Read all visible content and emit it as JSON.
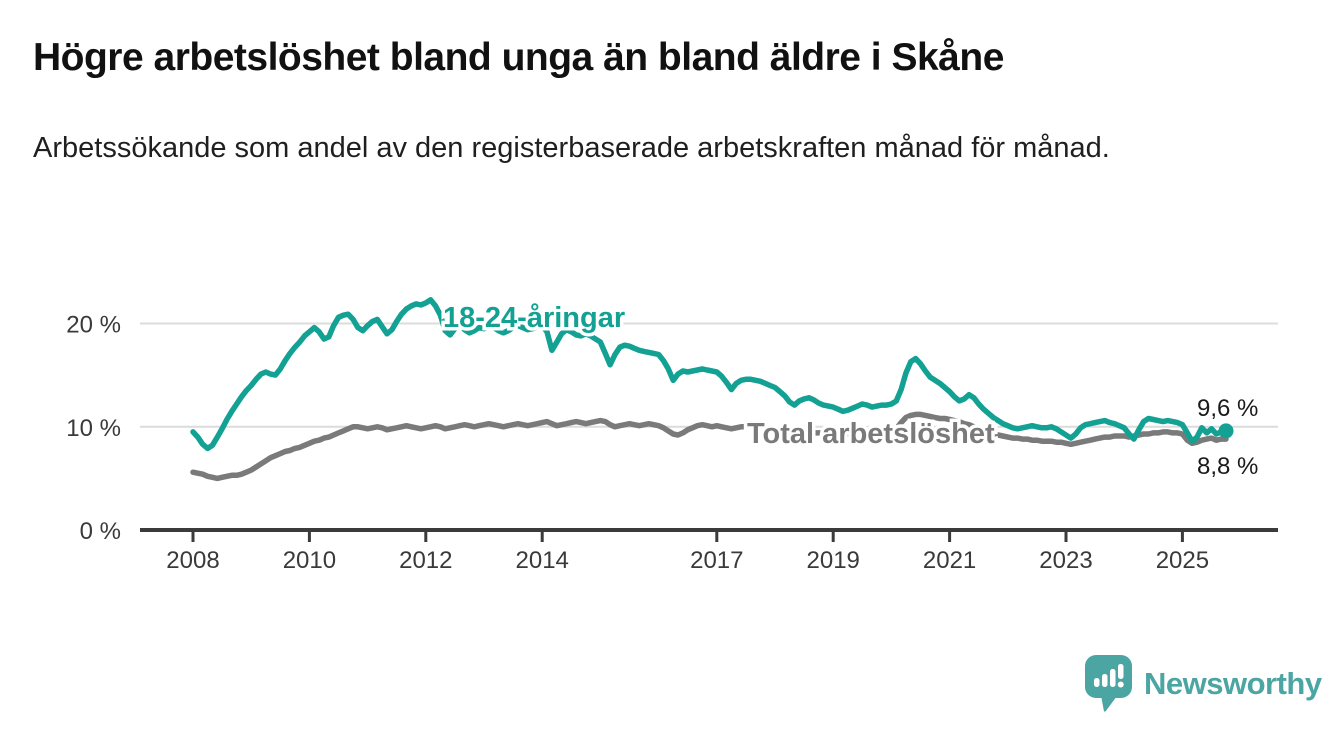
{
  "title": "Högre arbetslöshet bland unga än bland äldre i Skåne",
  "subtitle": "Arbetssökande som andel av den registerbaserade arbetskraften månad för månad.",
  "branding": {
    "wordmark": "Newsworthy",
    "logo_icon": "newsworthy-speech-bubble-bar-chart-icon",
    "brand_color": "#4ba5a2"
  },
  "colors": {
    "youth_line": "#12a192",
    "total_line": "#7a7a7a",
    "grid": "#dcdcdc",
    "axis": "#3b3b3b",
    "text": "#1a1a1a"
  },
  "chart_data": {
    "type": "line",
    "title": "Högre arbetslöshet bland unga än bland äldre i Skåne",
    "subtitle": "Arbetssökande som andel av den registerbaserade arbetskraften månad för månad.",
    "frequency": "monthly",
    "x_start": "2008-01",
    "x_end": "2025-10",
    "grid": "horizontal",
    "legend_position": "inline-labels",
    "ylim": [
      0,
      23
    ],
    "x_tick_years": [
      2008,
      2010,
      2012,
      2014,
      2017,
      2019,
      2021,
      2023,
      2025
    ],
    "x_tick_labels": [
      "2008",
      "2010",
      "2012",
      "2014",
      "2017",
      "2019",
      "2021",
      "2023",
      "2025"
    ],
    "y_tick_values": [
      0,
      10,
      20
    ],
    "y_tick_labels": [
      "0 %",
      "10 %",
      "20 %"
    ],
    "series": [
      {
        "name": "18-24-åringar",
        "color": "#12a192",
        "end_label": "9,6 %",
        "last_value": 9.6,
        "values": [
          9.5,
          9.0,
          8.3,
          7.9,
          8.2,
          9.0,
          9.8,
          10.7,
          11.5,
          12.2,
          12.9,
          13.5,
          14.0,
          14.6,
          15.1,
          15.3,
          15.1,
          15.0,
          15.6,
          16.4,
          17.1,
          17.7,
          18.2,
          18.8,
          19.2,
          19.6,
          19.2,
          18.5,
          18.7,
          19.8,
          20.6,
          20.8,
          20.9,
          20.4,
          19.6,
          19.3,
          19.8,
          20.2,
          20.4,
          19.7,
          19.0,
          19.4,
          20.2,
          20.9,
          21.4,
          21.7,
          21.9,
          21.8,
          22.0,
          22.3,
          21.7,
          20.8,
          19.3,
          18.9,
          19.5,
          19.8,
          19.4,
          19.1,
          19.3,
          19.6,
          19.5,
          19.7,
          19.6,
          19.3,
          19.1,
          19.3,
          19.6,
          19.8,
          19.6,
          19.4,
          19.5,
          19.7,
          19.8,
          19.2,
          17.4,
          18.2,
          19.0,
          19.4,
          19.2,
          18.9,
          18.8,
          19.0,
          18.8,
          18.5,
          18.2,
          17.1,
          16.0,
          17.0,
          17.7,
          17.9,
          17.8,
          17.6,
          17.4,
          17.3,
          17.2,
          17.1,
          17.0,
          16.4,
          15.6,
          14.5,
          15.1,
          15.4,
          15.3,
          15.4,
          15.5,
          15.6,
          15.5,
          15.4,
          15.3,
          14.9,
          14.3,
          13.6,
          14.2,
          14.5,
          14.6,
          14.6,
          14.5,
          14.4,
          14.2,
          14.0,
          13.8,
          13.4,
          13.0,
          12.4,
          12.1,
          12.5,
          12.7,
          12.8,
          12.6,
          12.3,
          12.1,
          12.0,
          11.9,
          11.7,
          11.5,
          11.6,
          11.8,
          12.0,
          12.2,
          12.1,
          11.9,
          12.0,
          12.1,
          12.1,
          12.2,
          12.5,
          13.6,
          15.2,
          16.3,
          16.6,
          16.1,
          15.4,
          14.8,
          14.5,
          14.2,
          13.8,
          13.4,
          12.9,
          12.5,
          12.7,
          13.1,
          12.8,
          12.2,
          11.7,
          11.3,
          10.9,
          10.6,
          10.3,
          10.1,
          9.9,
          9.8,
          9.9,
          10.0,
          10.1,
          10.0,
          9.9,
          9.9,
          10.0,
          9.8,
          9.5,
          9.2,
          8.9,
          9.3,
          9.9,
          10.2,
          10.3,
          10.4,
          10.5,
          10.6,
          10.4,
          10.3,
          10.1,
          9.9,
          9.3,
          8.8,
          9.7,
          10.5,
          10.8,
          10.7,
          10.6,
          10.5,
          10.6,
          10.5,
          10.4,
          10.2,
          9.4,
          8.6,
          9.0,
          9.9,
          9.4,
          9.8,
          9.3,
          9.5,
          9.6
        ]
      },
      {
        "name": "Total arbetslöshet",
        "color": "#7a7a7a",
        "end_label": "8,8 %",
        "last_value": 8.8,
        "values": [
          5.6,
          5.5,
          5.4,
          5.2,
          5.1,
          5.0,
          5.1,
          5.2,
          5.3,
          5.3,
          5.4,
          5.6,
          5.8,
          6.1,
          6.4,
          6.7,
          7.0,
          7.2,
          7.4,
          7.6,
          7.7,
          7.9,
          8.0,
          8.2,
          8.4,
          8.6,
          8.7,
          8.9,
          9.0,
          9.2,
          9.4,
          9.6,
          9.8,
          10.0,
          10.0,
          9.9,
          9.8,
          9.9,
          10.0,
          9.9,
          9.7,
          9.8,
          9.9,
          10.0,
          10.1,
          10.0,
          9.9,
          9.8,
          9.9,
          10.0,
          10.1,
          10.0,
          9.8,
          9.9,
          10.0,
          10.1,
          10.2,
          10.1,
          10.0,
          10.1,
          10.2,
          10.3,
          10.2,
          10.1,
          10.0,
          10.1,
          10.2,
          10.3,
          10.2,
          10.1,
          10.2,
          10.3,
          10.4,
          10.5,
          10.3,
          10.1,
          10.2,
          10.3,
          10.4,
          10.5,
          10.4,
          10.3,
          10.4,
          10.5,
          10.6,
          10.5,
          10.2,
          10.0,
          10.1,
          10.2,
          10.3,
          10.2,
          10.1,
          10.2,
          10.3,
          10.2,
          10.1,
          9.9,
          9.6,
          9.3,
          9.2,
          9.4,
          9.7,
          9.9,
          10.1,
          10.2,
          10.1,
          10.0,
          10.1,
          10.0,
          9.9,
          9.8,
          9.9,
          10.0,
          10.0,
          10.0,
          9.9,
          9.9,
          9.8,
          9.8,
          9.8,
          9.7,
          9.6,
          9.5,
          9.5,
          9.6,
          9.6,
          9.5,
          9.4,
          9.4,
          9.4,
          9.4,
          9.4,
          9.3,
          9.3,
          9.3,
          9.3,
          9.4,
          9.4,
          9.4,
          9.3,
          9.3,
          9.4,
          9.5,
          9.6,
          9.8,
          10.4,
          10.9,
          11.1,
          11.2,
          11.2,
          11.1,
          11.0,
          10.9,
          10.8,
          10.8,
          10.7,
          10.6,
          10.5,
          10.3,
          10.2,
          10.0,
          9.8,
          9.6,
          9.4,
          9.3,
          9.2,
          9.1,
          9.0,
          8.9,
          8.9,
          8.8,
          8.8,
          8.7,
          8.7,
          8.6,
          8.6,
          8.6,
          8.5,
          8.5,
          8.4,
          8.3,
          8.4,
          8.5,
          8.6,
          8.7,
          8.8,
          8.9,
          9.0,
          9.0,
          9.1,
          9.1,
          9.1,
          9.0,
          9.1,
          9.2,
          9.3,
          9.3,
          9.4,
          9.4,
          9.5,
          9.5,
          9.4,
          9.4,
          9.3,
          8.7,
          8.4,
          8.5,
          8.7,
          8.8,
          8.9,
          8.7,
          8.8,
          8.8
        ]
      }
    ]
  }
}
